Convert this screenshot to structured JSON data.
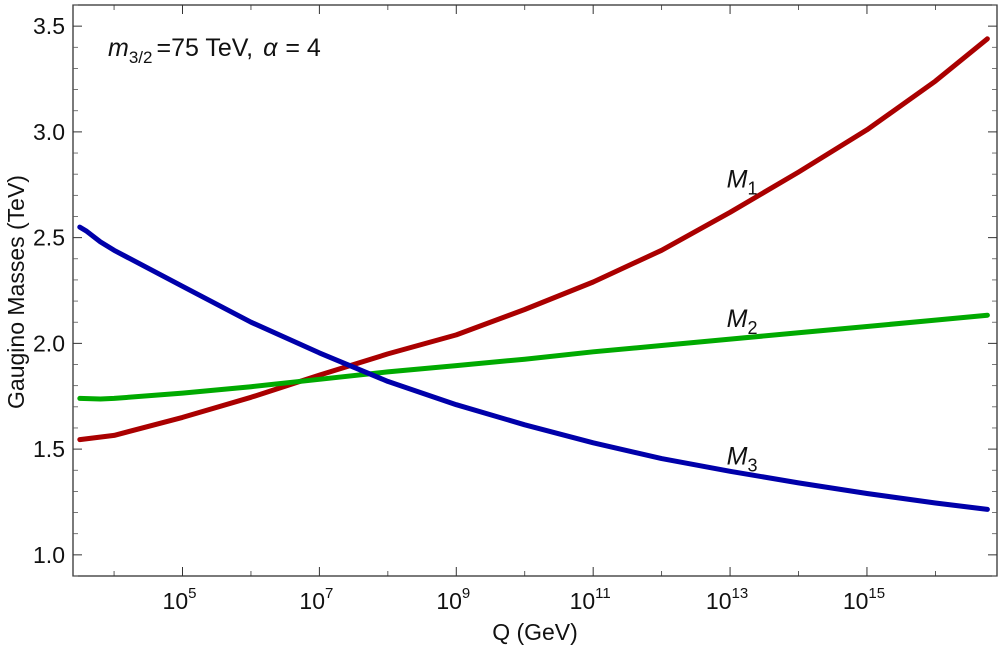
{
  "chart_data": {
    "type": "line",
    "title": "",
    "xlabel": "Q (GeV)",
    "ylabel": "Gaugino Masses (TeV)",
    "xscale": "log10",
    "xlim_log10": [
      3.4,
      16.9
    ],
    "ylim": [
      0.9,
      3.6
    ],
    "yticks": [
      1.0,
      1.5,
      2.0,
      2.5,
      3.0,
      3.5
    ],
    "ytick_labels": [
      "1.0",
      "1.5",
      "2.0",
      "2.5",
      "3.0",
      "3.5"
    ],
    "xticks_log10": [
      5,
      7,
      9,
      11,
      13,
      15
    ],
    "xtick_base": "10",
    "xtick_exponents": [
      "5",
      "7",
      "9",
      "11",
      "13",
      "15"
    ],
    "annotation": {
      "symbol": "m",
      "subscript": "3/2",
      "text": "=75 TeV,",
      "alpha_symbol": "α",
      "alpha_text": "= 4"
    },
    "colors": {
      "M1": "#aa0000",
      "M2": "#00aa00",
      "M3": "#0000aa"
    },
    "series": [
      {
        "name": "M1",
        "label_base": "M",
        "label_sub": "1",
        "label_at_log10": 12.95,
        "label_at_y": 2.78,
        "x_log10": [
          3.5,
          4.0,
          5.0,
          6.0,
          7.0,
          8.0,
          9.0,
          10.0,
          11.0,
          12.0,
          13.0,
          14.0,
          15.0,
          16.0,
          16.76
        ],
        "values": [
          1.545,
          1.565,
          1.65,
          1.745,
          1.85,
          1.95,
          2.04,
          2.16,
          2.29,
          2.44,
          2.62,
          2.81,
          3.01,
          3.24,
          3.44
        ]
      },
      {
        "name": "M2",
        "label_base": "M",
        "label_sub": "2",
        "label_at_log10": 12.95,
        "label_at_y": 2.12,
        "x_log10": [
          3.5,
          3.8,
          4.0,
          5.0,
          6.0,
          7.0,
          8.0,
          9.0,
          10.0,
          11.0,
          12.0,
          13.0,
          14.0,
          15.0,
          16.0,
          16.76
        ],
        "values": [
          1.74,
          1.737,
          1.74,
          1.765,
          1.795,
          1.83,
          1.865,
          1.895,
          1.925,
          1.96,
          1.99,
          2.02,
          2.05,
          2.08,
          2.11,
          2.133
        ]
      },
      {
        "name": "M3",
        "label_base": "M",
        "label_sub": "3",
        "label_at_log10": 12.95,
        "label_at_y": 1.47,
        "x_log10": [
          3.5,
          3.6,
          3.8,
          4.0,
          5.0,
          6.0,
          7.0,
          8.0,
          9.0,
          10.0,
          11.0,
          12.0,
          13.0,
          14.0,
          15.0,
          16.0,
          16.76
        ],
        "values": [
          2.55,
          2.53,
          2.48,
          2.44,
          2.27,
          2.1,
          1.955,
          1.82,
          1.71,
          1.615,
          1.53,
          1.455,
          1.395,
          1.34,
          1.29,
          1.245,
          1.215
        ]
      }
    ]
  }
}
